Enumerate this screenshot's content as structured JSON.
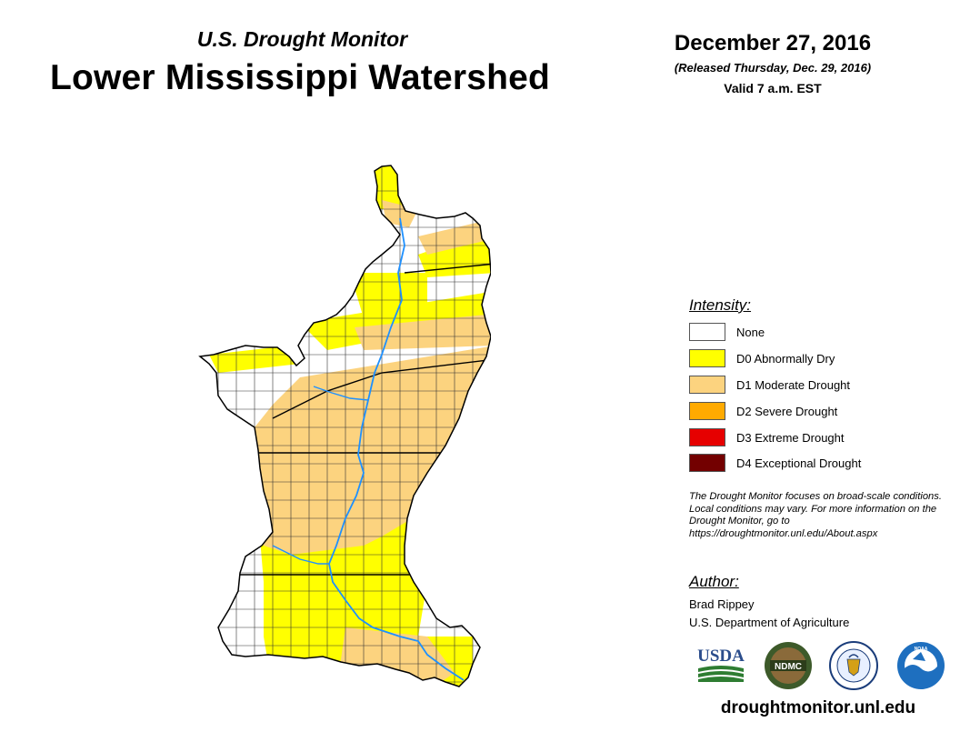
{
  "header": {
    "subtitle": "U.S. Drought Monitor",
    "title": "Lower Mississippi Watershed",
    "date": "December 27, 2016",
    "released": "(Released Thursday, Dec. 29, 2016)",
    "valid": "Valid 7 a.m. EST"
  },
  "legend": {
    "title": "Intensity:",
    "items": [
      {
        "label": "None",
        "color": "#ffffff"
      },
      {
        "label": "D0 Abnormally Dry",
        "color": "#ffff00"
      },
      {
        "label": "D1 Moderate Drought",
        "color": "#fcd37f"
      },
      {
        "label": "D2 Severe Drought",
        "color": "#ffaa00"
      },
      {
        "label": "D3 Extreme Drought",
        "color": "#e60000"
      },
      {
        "label": "D4 Exceptional Drought",
        "color": "#730000"
      }
    ]
  },
  "disclaimer": "The Drought Monitor focuses on broad-scale conditions. Local conditions may vary. For more information on the Drought Monitor, go to https://droughtmonitor.unl.edu/About.aspx",
  "author": {
    "title": "Author:",
    "name": "Brad Rippey",
    "org": "U.S. Department of Agriculture"
  },
  "logos": {
    "usda": "USDA",
    "ndmc": "NDMC",
    "noaa": "NOAA"
  },
  "website": "droughtmonitor.unl.edu",
  "colors": {
    "river": "#1e90ff",
    "border": "#000000"
  }
}
